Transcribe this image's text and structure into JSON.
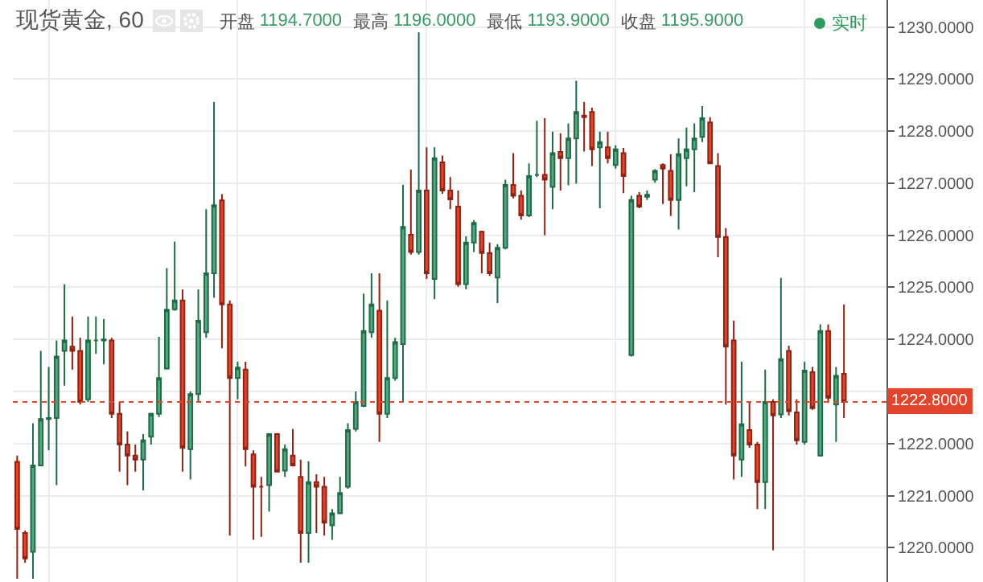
{
  "chart_data": {
    "type": "candlestick",
    "title": "现货黄金, 60",
    "annotations": [
      "开盘",
      "1194.7000",
      "最高",
      "1196.0000",
      "最低",
      "1193.9000",
      "收盘",
      "1195.9000",
      "实时"
    ],
    "categories": [
      null,
      null,
      null,
      null,
      null,
      null,
      null,
      null,
      null,
      null,
      null,
      null,
      null,
      null,
      null,
      null,
      null,
      null,
      null,
      null,
      null,
      null,
      null,
      null,
      null,
      null,
      null,
      null,
      null,
      null,
      null,
      null,
      null,
      null,
      null,
      null,
      null,
      null,
      null,
      null,
      null,
      null,
      null,
      null,
      null,
      null,
      null,
      null,
      null,
      null,
      null,
      null,
      null,
      null,
      null,
      null,
      null,
      null,
      null,
      null,
      null,
      null,
      null,
      null,
      null,
      null,
      null,
      null,
      null,
      null,
      null,
      null,
      null,
      null,
      null,
      null,
      null,
      null,
      null,
      null,
      null,
      null,
      null,
      null,
      null,
      null,
      null,
      null,
      null,
      null,
      null,
      null,
      null,
      null,
      null,
      null,
      null,
      null,
      null,
      null,
      null,
      null,
      null,
      null,
      null,
      null
    ],
    "ohlc": [
      [
        1221.65,
        1221.77,
        1219.4,
        1220.36
      ],
      [
        1220.28,
        1220.33,
        1219.71,
        1219.79
      ],
      [
        1219.92,
        1222.39,
        1219.4,
        1221.58
      ],
      [
        1221.58,
        1223.78,
        1221.58,
        1222.47
      ],
      [
        1222.47,
        1223.47,
        1221.87,
        1222.49
      ],
      [
        1222.49,
        1223.98,
        1221.2,
        1223.67
      ],
      [
        1223.78,
        1225.06,
        1223.11,
        1223.98
      ],
      [
        1223.86,
        1224.44,
        1223.42,
        1223.78
      ],
      [
        1223.78,
        1224.03,
        1222.75,
        1222.8
      ],
      [
        1222.85,
        1224.44,
        1222.8,
        1223.98
      ],
      [
        1223.98,
        1224.44,
        1223.72,
        1223.98
      ],
      [
        1223.98,
        1224.39,
        1223.52,
        1224.0
      ],
      [
        1223.98,
        1224.03,
        1222.49,
        1222.57
      ],
      [
        1222.57,
        1222.8,
        1221.46,
        1221.98
      ],
      [
        1221.98,
        1222.23,
        1221.2,
        1221.77
      ],
      [
        1221.77,
        1221.98,
        1221.46,
        1221.69
      ],
      [
        1221.69,
        1222.18,
        1221.1,
        1222.06
      ],
      [
        1222.13,
        1222.59,
        1221.98,
        1222.57
      ],
      [
        1222.57,
        1224.05,
        1222.51,
        1223.26
      ],
      [
        1223.44,
        1225.37,
        1223.42,
        1224.57
      ],
      [
        1224.58,
        1225.88,
        1224.55,
        1224.75
      ],
      [
        1224.75,
        1224.96,
        1221.46,
        1221.92
      ],
      [
        1221.89,
        1223.0,
        1221.31,
        1222.95
      ],
      [
        1222.95,
        1224.96,
        1222.8,
        1224.36
      ],
      [
        1224.14,
        1226.5,
        1224.03,
        1225.27
      ],
      [
        1225.27,
        1228.56,
        1224.8,
        1226.58
      ],
      [
        1226.67,
        1226.79,
        1223.83,
        1224.67
      ],
      [
        1224.67,
        1224.75,
        1220.23,
        1223.26
      ],
      [
        1223.26,
        1223.57,
        1222.85,
        1223.46
      ],
      [
        1223.42,
        1223.57,
        1221.56,
        1221.89
      ],
      [
        1221.79,
        1221.87,
        1220.15,
        1221.17
      ],
      [
        1221.17,
        1221.36,
        1220.21,
        1221.17
      ],
      [
        1221.2,
        1222.2,
        1220.69,
        1222.18
      ],
      [
        1222.18,
        1222.2,
        1221.46,
        1221.46
      ],
      [
        1221.48,
        1221.98,
        1221.36,
        1221.89
      ],
      [
        1221.77,
        1222.28,
        1221.56,
        1221.58
      ],
      [
        1221.36,
        1221.69,
        1219.71,
        1220.28
      ],
      [
        1220.28,
        1221.66,
        1219.71,
        1221.26
      ],
      [
        1221.26,
        1221.41,
        1220.28,
        1221.17
      ],
      [
        1221.17,
        1221.36,
        1220.23,
        1220.48
      ],
      [
        1220.43,
        1220.74,
        1220.15,
        1220.66
      ],
      [
        1220.66,
        1221.36,
        1220.64,
        1221.05
      ],
      [
        1221.17,
        1222.39,
        1221.13,
        1222.26
      ],
      [
        1222.28,
        1223.0,
        1222.23,
        1222.8
      ],
      [
        1222.72,
        1224.88,
        1222.7,
        1224.16
      ],
      [
        1224.14,
        1225.27,
        1224.03,
        1224.67
      ],
      [
        1224.55,
        1225.27,
        1222.03,
        1222.57
      ],
      [
        1222.57,
        1224.75,
        1222.49,
        1223.26
      ],
      [
        1223.26,
        1224.03,
        1223.21,
        1223.95
      ],
      [
        1223.91,
        1226.97,
        1222.8,
        1226.16
      ],
      [
        1226.01,
        1227.26,
        1225.63,
        1225.68
      ],
      [
        1225.68,
        1229.9,
        1225.63,
        1226.86
      ],
      [
        1226.86,
        1227.69,
        1225.16,
        1225.27
      ],
      [
        1225.16,
        1227.69,
        1224.77,
        1227.48
      ],
      [
        1227.4,
        1227.53,
        1226.8,
        1226.86
      ],
      [
        1226.86,
        1227.12,
        1226.5,
        1226.69
      ],
      [
        1226.55,
        1226.86,
        1225.01,
        1225.06
      ],
      [
        1225.06,
        1225.98,
        1224.96,
        1225.86
      ],
      [
        1225.86,
        1226.29,
        1225.68,
        1226.24
      ],
      [
        1226.07,
        1226.09,
        1225.27,
        1225.66
      ],
      [
        1225.66,
        1225.86,
        1225.22,
        1225.27
      ],
      [
        1225.19,
        1225.83,
        1224.7,
        1225.76
      ],
      [
        1225.76,
        1227.07,
        1225.73,
        1226.97
      ],
      [
        1226.97,
        1227.58,
        1226.71,
        1226.76
      ],
      [
        1226.76,
        1226.86,
        1226.3,
        1226.38
      ],
      [
        1226.38,
        1227.38,
        1226.35,
        1227.14
      ],
      [
        1227.16,
        1228.2,
        1227.12,
        1227.16
      ],
      [
        1227.16,
        1228.25,
        1226.0,
        1227.07
      ],
      [
        1226.93,
        1227.99,
        1226.5,
        1227.58
      ],
      [
        1227.6,
        1227.96,
        1226.86,
        1227.48
      ],
      [
        1227.48,
        1228.15,
        1226.96,
        1227.86
      ],
      [
        1227.86,
        1228.97,
        1226.99,
        1228.37
      ],
      [
        1228.3,
        1228.56,
        1227.61,
        1228.27
      ],
      [
        1228.37,
        1228.45,
        1227.33,
        1227.65
      ],
      [
        1227.69,
        1227.99,
        1226.52,
        1227.79
      ],
      [
        1227.69,
        1227.99,
        1227.38,
        1227.48
      ],
      [
        1227.35,
        1227.73,
        1227.28,
        1227.65
      ],
      [
        1227.58,
        1227.68,
        1226.81,
        1227.14
      ],
      [
        1223.7,
        1226.76,
        1223.67,
        1226.68
      ],
      [
        1226.76,
        1226.83,
        1226.52,
        1226.55
      ],
      [
        1226.74,
        1226.86,
        1226.68,
        1226.78
      ],
      [
        1227.07,
        1227.27,
        1227.01,
        1227.24
      ],
      [
        1227.35,
        1227.38,
        1226.6,
        1227.28
      ],
      [
        1227.24,
        1227.56,
        1226.37,
        1226.68
      ],
      [
        1226.68,
        1227.86,
        1226.11,
        1227.56
      ],
      [
        1227.48,
        1228.07,
        1226.94,
        1227.65
      ],
      [
        1227.65,
        1228.15,
        1226.83,
        1227.86
      ],
      [
        1227.89,
        1228.48,
        1227.79,
        1228.25
      ],
      [
        1228.17,
        1228.27,
        1227.38,
        1227.38
      ],
      [
        1227.33,
        1227.58,
        1225.58,
        1225.97
      ],
      [
        1225.97,
        1226.14,
        1222.75,
        1223.86
      ],
      [
        1223.98,
        1224.36,
        1221.31,
        1221.77
      ],
      [
        1221.69,
        1223.57,
        1221.36,
        1222.37
      ],
      [
        1222.26,
        1222.8,
        1221.92,
        1221.98
      ],
      [
        1221.98,
        1222.03,
        1220.74,
        1221.26
      ],
      [
        1221.26,
        1223.42,
        1220.74,
        1222.8
      ],
      [
        1222.8,
        1222.85,
        1219.95,
        1222.54
      ],
      [
        1222.56,
        1225.18,
        1222.49,
        1223.62
      ],
      [
        1223.78,
        1223.88,
        1222.54,
        1222.62
      ],
      [
        1222.6,
        1222.85,
        1221.98,
        1222.06
      ],
      [
        1222.03,
        1223.57,
        1221.98,
        1223.4
      ],
      [
        1223.37,
        1223.47,
        1222.65,
        1222.68
      ],
      [
        1221.77,
        1224.29,
        1221.75,
        1224.16
      ],
      [
        1224.16,
        1224.29,
        1222.78,
        1222.88
      ],
      [
        1222.75,
        1223.47,
        1222.03,
        1223.3
      ],
      [
        1223.34,
        1224.67,
        1222.49,
        1222.8
      ]
    ],
    "ylim": [
      1219.34,
      1230.52
    ],
    "yticks": [
      {
        "value": 1220,
        "label": "1220.0000"
      },
      {
        "value": 1221,
        "label": "1221.0000"
      },
      {
        "value": 1222,
        "label": "1222.0000"
      },
      {
        "value": 1223,
        "label": null
      },
      {
        "value": 1224,
        "label": "1224.0000"
      },
      {
        "value": 1225,
        "label": "1225.0000"
      },
      {
        "value": 1226,
        "label": "1226.0000"
      },
      {
        "value": 1227,
        "label": "1227.0000"
      },
      {
        "value": 1228,
        "label": "1228.0000"
      },
      {
        "value": 1229,
        "label": "1229.0000"
      },
      {
        "value": 1230,
        "label": "1230.0000"
      }
    ],
    "ref_lines": [
      {
        "axis": "y",
        "value": 1222.8,
        "label": "1222.8000",
        "color": "#e2452c",
        "line_style": "dotted"
      }
    ],
    "grid": true
  }
}
